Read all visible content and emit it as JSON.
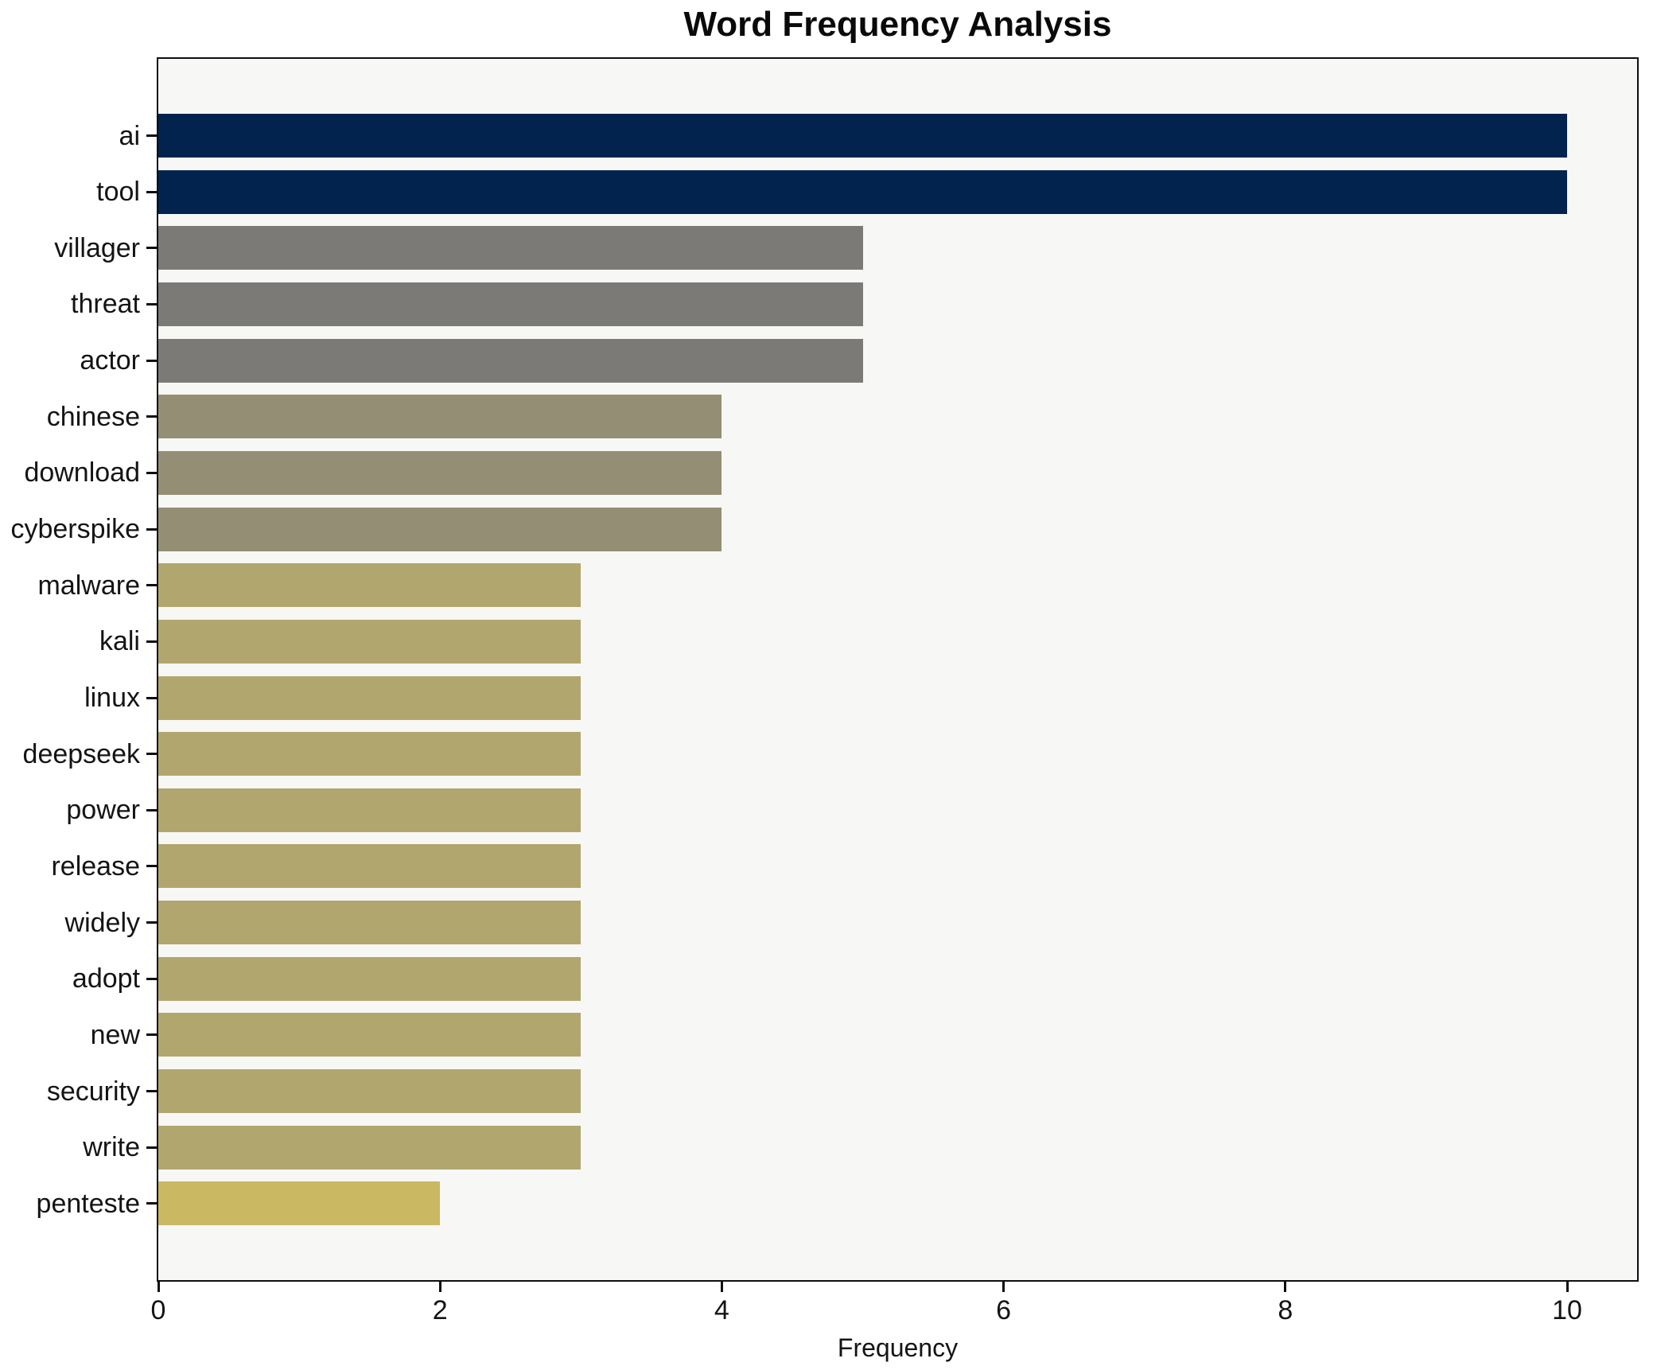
{
  "chart_data": {
    "type": "bar",
    "orientation": "horizontal",
    "title": "Word Frequency Analysis",
    "xlabel": "Frequency",
    "ylabel": "",
    "categories": [
      "ai",
      "tool",
      "villager",
      "threat",
      "actor",
      "chinese",
      "download",
      "cyberspike",
      "malware",
      "kali",
      "linux",
      "deepseek",
      "power",
      "release",
      "widely",
      "adopt",
      "new",
      "security",
      "write",
      "penteste"
    ],
    "values": [
      10,
      10,
      5,
      5,
      5,
      4,
      4,
      4,
      3,
      3,
      3,
      3,
      3,
      3,
      3,
      3,
      3,
      3,
      3,
      2
    ],
    "bar_colors": [
      "#02234d",
      "#02234d",
      "#7b7a77",
      "#7b7a77",
      "#7b7a77",
      "#948e74",
      "#948e74",
      "#948e74",
      "#b1a76e",
      "#b1a76e",
      "#b1a76e",
      "#b1a76e",
      "#b1a76e",
      "#b1a76e",
      "#b1a76e",
      "#b1a76e",
      "#b1a76e",
      "#b1a76e",
      "#b1a76e",
      "#cab863"
    ],
    "xlim": [
      0,
      10.5
    ],
    "xticks": [
      0,
      2,
      4,
      6,
      8,
      10
    ],
    "grid": false,
    "legend_position": "none",
    "plot_bg": "#f7f7f5",
    "figure_bg": "#ffffff",
    "spine_color": "#0e0e0e"
  }
}
